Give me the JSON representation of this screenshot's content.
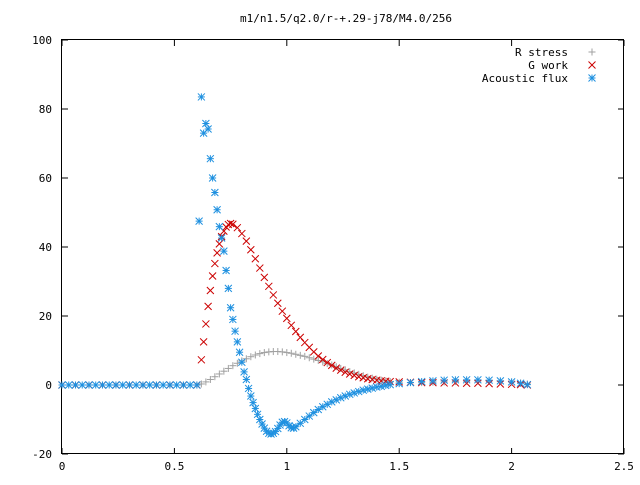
{
  "chart_data": {
    "type": "scatter",
    "title": "m1/n1.5/q2.0/r-+.29-j78/M4.0/256",
    "xlabel": "",
    "ylabel": "",
    "xlim": [
      0,
      2.5
    ],
    "ylim": [
      -20,
      100
    ],
    "x_ticks": [
      {
        "value": 0,
        "label": "0"
      },
      {
        "value": 0.5,
        "label": "0.5"
      },
      {
        "value": 1,
        "label": "1"
      },
      {
        "value": 1.5,
        "label": "1.5"
      },
      {
        "value": 2,
        "label": "2"
      },
      {
        "value": 2.5,
        "label": "2.5"
      }
    ],
    "y_ticks": [
      {
        "value": -20,
        "label": "-20"
      },
      {
        "value": 0,
        "label": "0"
      },
      {
        "value": 20,
        "label": "20"
      },
      {
        "value": 40,
        "label": "40"
      },
      {
        "value": 60,
        "label": "60"
      },
      {
        "value": 80,
        "label": "80"
      },
      {
        "value": 100,
        "label": "100"
      }
    ],
    "grid": false,
    "legend_position": "top-right",
    "series": [
      {
        "name": "R stress",
        "marker": "plus",
        "color": "#a0a0a0",
        "points": [
          [
            0.0,
            0.0
          ],
          [
            0.06,
            0.0
          ],
          [
            0.12,
            0.0
          ],
          [
            0.18,
            0.0
          ],
          [
            0.24,
            0.0
          ],
          [
            0.3,
            0.0
          ],
          [
            0.36,
            0.0
          ],
          [
            0.42,
            0.0
          ],
          [
            0.48,
            0.0
          ],
          [
            0.54,
            0.0
          ],
          [
            0.6,
            0.0
          ],
          [
            0.62,
            0.3
          ],
          [
            0.64,
            0.9
          ],
          [
            0.66,
            1.6
          ],
          [
            0.68,
            2.4
          ],
          [
            0.7,
            3.2
          ],
          [
            0.72,
            4.0
          ],
          [
            0.74,
            4.8
          ],
          [
            0.76,
            5.6
          ],
          [
            0.78,
            6.3
          ],
          [
            0.8,
            7.0
          ],
          [
            0.82,
            7.6
          ],
          [
            0.84,
            8.2
          ],
          [
            0.86,
            8.7
          ],
          [
            0.88,
            9.1
          ],
          [
            0.9,
            9.4
          ],
          [
            0.92,
            9.6
          ],
          [
            0.94,
            9.7
          ],
          [
            0.96,
            9.7
          ],
          [
            0.98,
            9.6
          ],
          [
            1.0,
            9.4
          ],
          [
            1.02,
            9.2
          ],
          [
            1.04,
            8.9
          ],
          [
            1.06,
            8.6
          ],
          [
            1.08,
            8.3
          ],
          [
            1.1,
            7.9
          ],
          [
            1.12,
            7.5
          ],
          [
            1.14,
            7.1
          ],
          [
            1.16,
            6.7
          ],
          [
            1.18,
            6.2
          ],
          [
            1.2,
            5.8
          ],
          [
            1.22,
            5.3
          ],
          [
            1.24,
            4.8
          ],
          [
            1.26,
            4.4
          ],
          [
            1.28,
            3.9
          ],
          [
            1.3,
            3.5
          ],
          [
            1.32,
            3.1
          ],
          [
            1.34,
            2.7
          ],
          [
            1.36,
            2.3
          ],
          [
            1.38,
            2.0
          ],
          [
            1.4,
            1.7
          ],
          [
            1.42,
            1.4
          ],
          [
            1.44,
            1.2
          ],
          [
            1.46,
            1.0
          ],
          [
            1.5,
            0.8
          ],
          [
            1.55,
            0.7
          ],
          [
            1.6,
            0.7
          ],
          [
            1.65,
            0.8
          ],
          [
            1.7,
            0.9
          ],
          [
            1.75,
            1.0
          ],
          [
            1.8,
            1.1
          ],
          [
            1.85,
            1.2
          ],
          [
            1.9,
            1.2
          ],
          [
            1.95,
            1.1
          ],
          [
            2.0,
            0.9
          ],
          [
            2.04,
            0.6
          ],
          [
            2.07,
            0.3
          ]
        ]
      },
      {
        "name": "G work",
        "marker": "cross",
        "color": "#cc0000",
        "points": [
          [
            0.0,
            0.0
          ],
          [
            0.06,
            0.0
          ],
          [
            0.12,
            0.0
          ],
          [
            0.18,
            0.0
          ],
          [
            0.24,
            0.0
          ],
          [
            0.3,
            0.0
          ],
          [
            0.36,
            0.0
          ],
          [
            0.42,
            0.0
          ],
          [
            0.48,
            0.0
          ],
          [
            0.54,
            0.0
          ],
          [
            0.6,
            0.0
          ],
          [
            0.62,
            7.3
          ],
          [
            0.63,
            12.5
          ],
          [
            0.64,
            17.7
          ],
          [
            0.65,
            22.8
          ],
          [
            0.66,
            27.4
          ],
          [
            0.67,
            31.6
          ],
          [
            0.68,
            35.2
          ],
          [
            0.69,
            38.3
          ],
          [
            0.7,
            40.9
          ],
          [
            0.71,
            43.0
          ],
          [
            0.72,
            44.6
          ],
          [
            0.73,
            45.8
          ],
          [
            0.74,
            46.5
          ],
          [
            0.75,
            46.8
          ],
          [
            0.76,
            46.6
          ],
          [
            0.78,
            45.6
          ],
          [
            0.8,
            43.9
          ],
          [
            0.82,
            41.7
          ],
          [
            0.84,
            39.2
          ],
          [
            0.86,
            36.6
          ],
          [
            0.88,
            33.9
          ],
          [
            0.9,
            31.2
          ],
          [
            0.92,
            28.6
          ],
          [
            0.94,
            26.1
          ],
          [
            0.96,
            23.7
          ],
          [
            0.98,
            21.4
          ],
          [
            1.0,
            19.3
          ],
          [
            1.02,
            17.3
          ],
          [
            1.04,
            15.5
          ],
          [
            1.06,
            13.8
          ],
          [
            1.08,
            12.3
          ],
          [
            1.1,
            10.9
          ],
          [
            1.12,
            9.6
          ],
          [
            1.14,
            8.4
          ],
          [
            1.16,
            7.4
          ],
          [
            1.18,
            6.5
          ],
          [
            1.2,
            5.7
          ],
          [
            1.22,
            4.9
          ],
          [
            1.24,
            4.3
          ],
          [
            1.26,
            3.7
          ],
          [
            1.28,
            3.2
          ],
          [
            1.3,
            2.8
          ],
          [
            1.32,
            2.4
          ],
          [
            1.34,
            2.1
          ],
          [
            1.36,
            1.8
          ],
          [
            1.38,
            1.6
          ],
          [
            1.4,
            1.4
          ],
          [
            1.42,
            1.2
          ],
          [
            1.44,
            1.1
          ],
          [
            1.46,
            1.0
          ],
          [
            1.5,
            0.9
          ],
          [
            1.55,
            0.8
          ],
          [
            1.6,
            0.7
          ],
          [
            1.65,
            0.7
          ],
          [
            1.7,
            0.6
          ],
          [
            1.75,
            0.6
          ],
          [
            1.8,
            0.5
          ],
          [
            1.85,
            0.5
          ],
          [
            1.9,
            0.4
          ],
          [
            1.95,
            0.3
          ],
          [
            2.0,
            0.2
          ],
          [
            2.04,
            0.1
          ],
          [
            2.07,
            0.0
          ]
        ]
      },
      {
        "name": "Acoustic flux",
        "marker": "star",
        "color": "#1e90e0",
        "points": [
          [
            0.0,
            0.0
          ],
          [
            0.03,
            0.0
          ],
          [
            0.06,
            0.0
          ],
          [
            0.09,
            0.0
          ],
          [
            0.12,
            0.0
          ],
          [
            0.15,
            0.0
          ],
          [
            0.18,
            0.0
          ],
          [
            0.21,
            0.0
          ],
          [
            0.24,
            0.0
          ],
          [
            0.27,
            0.0
          ],
          [
            0.3,
            0.0
          ],
          [
            0.33,
            0.0
          ],
          [
            0.36,
            0.0
          ],
          [
            0.39,
            0.0
          ],
          [
            0.42,
            0.0
          ],
          [
            0.45,
            0.0
          ],
          [
            0.48,
            0.0
          ],
          [
            0.51,
            0.0
          ],
          [
            0.54,
            0.0
          ],
          [
            0.57,
            0.0
          ],
          [
            0.6,
            0.0
          ],
          [
            0.61,
            47.5
          ],
          [
            0.62,
            83.5
          ],
          [
            0.63,
            73.0
          ],
          [
            0.64,
            75.8
          ],
          [
            0.65,
            74.2
          ],
          [
            0.66,
            65.6
          ],
          [
            0.67,
            60.0
          ],
          [
            0.68,
            55.8
          ],
          [
            0.69,
            50.8
          ],
          [
            0.7,
            45.9
          ],
          [
            0.71,
            42.6
          ],
          [
            0.72,
            38.8
          ],
          [
            0.73,
            33.2
          ],
          [
            0.74,
            28.0
          ],
          [
            0.75,
            22.4
          ],
          [
            0.76,
            19.0
          ],
          [
            0.77,
            15.6
          ],
          [
            0.78,
            12.5
          ],
          [
            0.79,
            9.5
          ],
          [
            0.8,
            6.6
          ],
          [
            0.81,
            3.8
          ],
          [
            0.82,
            1.6
          ],
          [
            0.83,
            -1.0
          ],
          [
            0.84,
            -3.2
          ],
          [
            0.85,
            -5.1
          ],
          [
            0.86,
            -6.8
          ],
          [
            0.87,
            -8.5
          ],
          [
            0.88,
            -10.0
          ],
          [
            0.89,
            -11.3
          ],
          [
            0.9,
            -12.5
          ],
          [
            0.91,
            -13.4
          ],
          [
            0.92,
            -14.0
          ],
          [
            0.93,
            -14.2
          ],
          [
            0.94,
            -14.0
          ],
          [
            0.95,
            -13.5
          ],
          [
            0.96,
            -12.6
          ],
          [
            0.97,
            -11.6
          ],
          [
            0.98,
            -10.8
          ],
          [
            0.99,
            -10.6
          ],
          [
            1.0,
            -11.0
          ],
          [
            1.01,
            -11.8
          ],
          [
            1.02,
            -12.4
          ],
          [
            1.03,
            -12.5
          ],
          [
            1.04,
            -12.1
          ],
          [
            1.06,
            -11.1
          ],
          [
            1.08,
            -10.0
          ],
          [
            1.1,
            -9.0
          ],
          [
            1.12,
            -8.0
          ],
          [
            1.14,
            -7.1
          ],
          [
            1.16,
            -6.3
          ],
          [
            1.18,
            -5.6
          ],
          [
            1.2,
            -4.9
          ],
          [
            1.22,
            -4.3
          ],
          [
            1.24,
            -3.7
          ],
          [
            1.26,
            -3.2
          ],
          [
            1.28,
            -2.7
          ],
          [
            1.3,
            -2.3
          ],
          [
            1.32,
            -1.9
          ],
          [
            1.34,
            -1.5
          ],
          [
            1.36,
            -1.2
          ],
          [
            1.38,
            -0.9
          ],
          [
            1.4,
            -0.6
          ],
          [
            1.42,
            -0.4
          ],
          [
            1.44,
            -0.1
          ],
          [
            1.46,
            0.1
          ],
          [
            1.5,
            0.4
          ],
          [
            1.55,
            0.7
          ],
          [
            1.6,
            1.0
          ],
          [
            1.65,
            1.2
          ],
          [
            1.7,
            1.4
          ],
          [
            1.75,
            1.5
          ],
          [
            1.8,
            1.5
          ],
          [
            1.85,
            1.5
          ],
          [
            1.9,
            1.4
          ],
          [
            1.95,
            1.2
          ],
          [
            2.0,
            0.9
          ],
          [
            2.04,
            0.5
          ],
          [
            2.07,
            0.1
          ]
        ]
      }
    ]
  }
}
